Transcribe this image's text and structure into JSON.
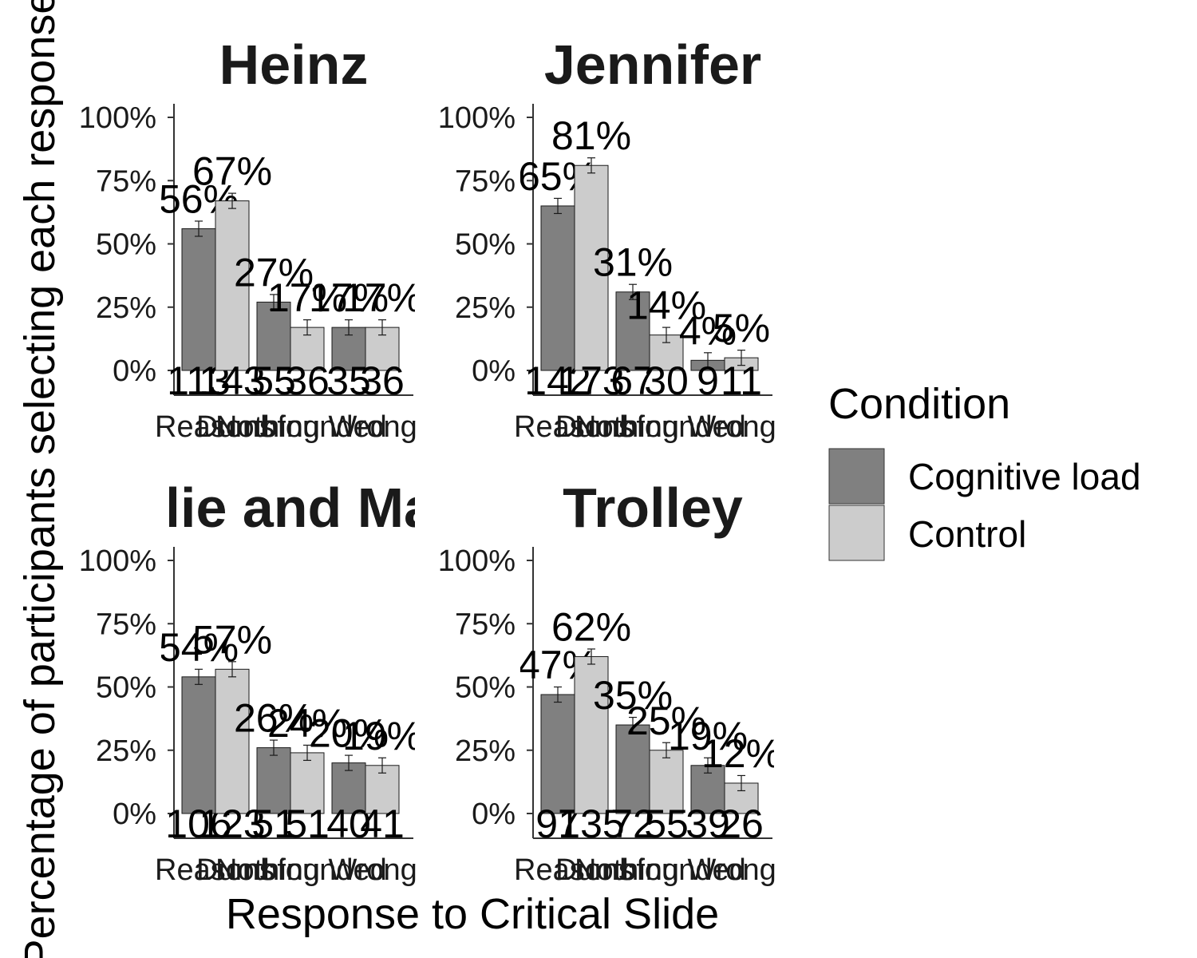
{
  "chart_data": {
    "type": "bar",
    "xlabel": "Response to Critical Slide",
    "ylabel": "Percentage of participants selecting each response",
    "ylim": [
      0,
      1
    ],
    "yticks": [
      "0%",
      "25%",
      "50%",
      "75%",
      "100%"
    ],
    "categories": [
      "Reasons",
      "Dumbfounded",
      "Nothing Wrong"
    ],
    "legend": {
      "title": "Condition",
      "position": "right",
      "entries": [
        {
          "name": "Cognitive load",
          "color": "#808080"
        },
        {
          "name": "Control",
          "color": "#cccccc"
        }
      ]
    },
    "panels": [
      {
        "title": "Heinz",
        "series": [
          {
            "name": "Cognitive load",
            "values": [
              0.56,
              0.27,
              0.17
            ],
            "labels": [
              "56%",
              "27%",
              "17%"
            ],
            "counts": [
              "113",
              "55",
              "35"
            ]
          },
          {
            "name": "Control",
            "values": [
              0.67,
              0.17,
              0.17
            ],
            "labels": [
              "67%",
              "17%",
              "17%"
            ],
            "counts": [
              "143",
              "36",
              "36"
            ]
          }
        ]
      },
      {
        "title": "Jennifer",
        "series": [
          {
            "name": "Cognitive load",
            "values": [
              0.65,
              0.31,
              0.04
            ],
            "labels": [
              "65%",
              "31%",
              "4%"
            ],
            "counts": [
              "142",
              "67",
              "9"
            ]
          },
          {
            "name": "Control",
            "values": [
              0.81,
              0.14,
              0.05
            ],
            "labels": [
              "81%",
              "14%",
              "5%"
            ],
            "counts": [
              "173",
              "30",
              "11"
            ]
          }
        ]
      },
      {
        "title": "Julie and Mark",
        "series": [
          {
            "name": "Cognitive load",
            "values": [
              0.54,
              0.26,
              0.2
            ],
            "labels": [
              "54%",
              "26%",
              "20%"
            ],
            "counts": [
              "106",
              "51",
              "40"
            ]
          },
          {
            "name": "Control",
            "values": [
              0.57,
              0.24,
              0.19
            ],
            "labels": [
              "57%",
              "24%",
              "19%"
            ],
            "counts": [
              "123",
              "51",
              "41"
            ]
          }
        ]
      },
      {
        "title": "Trolley",
        "series": [
          {
            "name": "Cognitive load",
            "values": [
              0.47,
              0.35,
              0.19
            ],
            "labels": [
              "47%",
              "35%",
              "19%"
            ],
            "counts": [
              "97",
              "72",
              "39"
            ]
          },
          {
            "name": "Control",
            "values": [
              0.62,
              0.25,
              0.12
            ],
            "labels": [
              "62%",
              "25%",
              "12%"
            ],
            "counts": [
              "135",
              "55",
              "26"
            ]
          }
        ]
      }
    ]
  }
}
